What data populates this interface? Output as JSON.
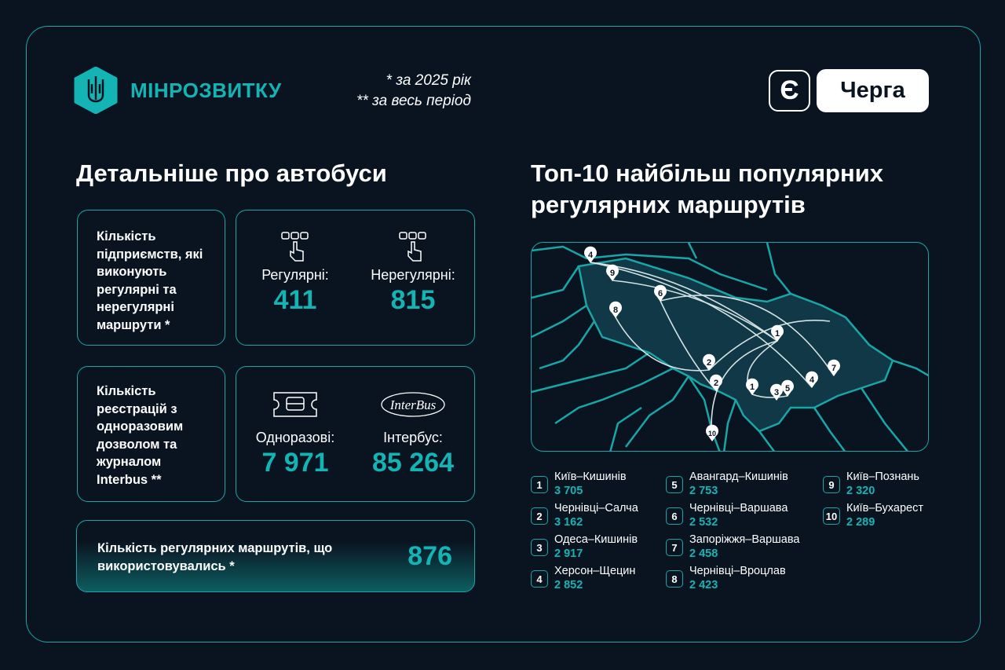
{
  "header": {
    "brand": "МІНРОЗВИТКУ",
    "note1": "* за 2025 рік",
    "note2": "** за весь період",
    "app_label": "Черга",
    "app_icon_glyph": "Є"
  },
  "left": {
    "title": "Детальніше про автобуси",
    "card1": {
      "label": "Кількість підприємств, які виконують регулярні та нерегулярні маршрути *",
      "stats": [
        {
          "label": "Регулярні:",
          "value": "411"
        },
        {
          "label": "Нерегулярні:",
          "value": "815"
        }
      ]
    },
    "card2": {
      "label": "Кількість реєстрацій з одноразовим дозволом та журналом Interbus **",
      "stats": [
        {
          "label": "Одноразові:",
          "value": "7 971"
        },
        {
          "label": "Інтербус:",
          "value": "85 264"
        }
      ],
      "interbus_logo": "InterBus"
    },
    "card3": {
      "label": "Кількість регулярних маршрутів, що використовувались *",
      "value": "876"
    }
  },
  "right": {
    "title": "Топ-10 найбільш популярних регулярних маршрутів",
    "routes": [
      {
        "n": "1",
        "name": "Київ–Кишинів",
        "value": "3 705"
      },
      {
        "n": "2",
        "name": "Чернівці–Салча",
        "value": "3 162"
      },
      {
        "n": "3",
        "name": "Одеса–Кишинів",
        "value": "2 917"
      },
      {
        "n": "4",
        "name": "Херсон–Щецин",
        "value": "2 852"
      },
      {
        "n": "5",
        "name": "Авангард–Кишинів",
        "value": "2 753"
      },
      {
        "n": "6",
        "name": "Чернівці–Варшава",
        "value": "2 532"
      },
      {
        "n": "7",
        "name": "Запоріжжя–Варшава",
        "value": "2 458"
      },
      {
        "n": "8",
        "name": "Чернівці–Вроцлав",
        "value": "2 423"
      },
      {
        "n": "9",
        "name": "Київ–Познань",
        "value": "2 320"
      },
      {
        "n": "10",
        "name": "Київ–Бухарест",
        "value": "2 289"
      }
    ]
  },
  "colors": {
    "bg": "#0a1421",
    "accent": "#14b4b4",
    "border": "#18a6a6"
  }
}
